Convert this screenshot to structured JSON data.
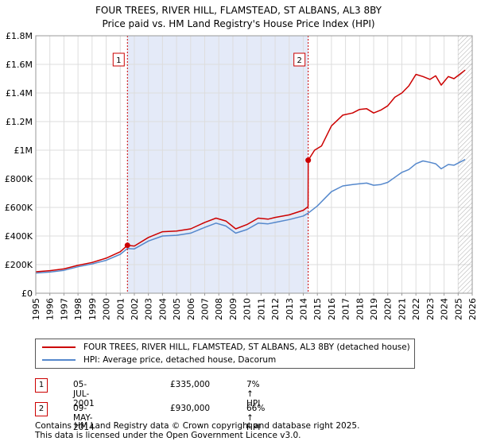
{
  "chart_data": {
    "type": "line",
    "title": "FOUR TREES, RIVER HILL, FLAMSTEAD, ST ALBANS, AL3 8BY",
    "subtitle": "Price paid vs. HM Land Registry's House Price Index (HPI)",
    "xlim": [
      1995,
      2026
    ],
    "ylim": [
      0,
      1800000
    ],
    "x_ticks": [
      1995,
      1996,
      1997,
      1998,
      1999,
      2000,
      2001,
      2002,
      2003,
      2004,
      2005,
      2006,
      2007,
      2008,
      2009,
      2010,
      2011,
      2012,
      2013,
      2014,
      2015,
      2016,
      2017,
      2018,
      2019,
      2020,
      2021,
      2022,
      2023,
      2024,
      2025,
      2026
    ],
    "y_ticks": [
      {
        "value": 0,
        "label": "£0"
      },
      {
        "value": 200000,
        "label": "£200K"
      },
      {
        "value": 400000,
        "label": "£400K"
      },
      {
        "value": 600000,
        "label": "£600K"
      },
      {
        "value": 800000,
        "label": "£800K"
      },
      {
        "value": 1000000,
        "label": "£1M"
      },
      {
        "value": 1200000,
        "label": "£1.2M"
      },
      {
        "value": 1400000,
        "label": "£1.4M"
      },
      {
        "value": 1600000,
        "label": "£1.6M"
      },
      {
        "value": 1800000,
        "label": "£1.8M"
      }
    ],
    "grid": true,
    "shaded_span": [
      2001.5,
      2014.35
    ],
    "forecast_hatch_from": 2025.0,
    "series": [
      {
        "name": "FOUR TREES, RIVER HILL, FLAMSTEAD, ST ALBANS, AL3 8BY (detached house)",
        "color": "#cc0000",
        "x": [
          1995,
          1996,
          1997,
          1998,
          1999,
          2000,
          2001,
          2001.51,
          2002,
          2003,
          2004,
          2005,
          2006,
          2007,
          2007.8,
          2008.5,
          2009.2,
          2010,
          2010.8,
          2011.5,
          2012,
          2013,
          2014,
          2014.34,
          2014.35,
          2014.8,
          2015.3,
          2016,
          2016.8,
          2017.5,
          2018,
          2018.5,
          2019,
          2019.5,
          2020,
          2020.5,
          2021,
          2021.5,
          2022,
          2022.5,
          2023,
          2023.4,
          2023.8,
          2024.3,
          2024.7,
          2025.1,
          2025.5
        ],
        "values": [
          150000,
          158000,
          170000,
          195000,
          215000,
          245000,
          290000,
          335000,
          330000,
          390000,
          430000,
          435000,
          450000,
          495000,
          525000,
          505000,
          450000,
          480000,
          525000,
          518000,
          530000,
          548000,
          580000,
          605000,
          930000,
          1000000,
          1030000,
          1170000,
          1245000,
          1260000,
          1285000,
          1290000,
          1260000,
          1280000,
          1310000,
          1370000,
          1400000,
          1450000,
          1530000,
          1515000,
          1495000,
          1520000,
          1455000,
          1515000,
          1500000,
          1530000,
          1560000
        ]
      },
      {
        "name": "HPI: Average price, detached house, Dacorum",
        "color": "#5588cc",
        "x": [
          1995,
          1996,
          1997,
          1998,
          1999,
          2000,
          2001,
          2001.51,
          2002,
          2003,
          2004,
          2005,
          2006,
          2007,
          2007.8,
          2008.5,
          2009.2,
          2010,
          2010.8,
          2011.5,
          2012,
          2013,
          2014,
          2014.35,
          2015,
          2015.5,
          2016,
          2016.8,
          2017.5,
          2018,
          2018.5,
          2019,
          2019.5,
          2020,
          2020.5,
          2021,
          2021.5,
          2022,
          2022.5,
          2023,
          2023.4,
          2023.8,
          2024.3,
          2024.7,
          2025.1,
          2025.5
        ],
        "values": [
          141000,
          148000,
          160000,
          185000,
          205000,
          230000,
          272000,
          313000,
          310000,
          365000,
          400000,
          405000,
          420000,
          460000,
          490000,
          470000,
          420000,
          445000,
          490000,
          485000,
          495000,
          515000,
          540000,
          560000,
          610000,
          660000,
          710000,
          750000,
          760000,
          765000,
          770000,
          755000,
          760000,
          775000,
          810000,
          845000,
          865000,
          905000,
          925000,
          915000,
          905000,
          870000,
          900000,
          895000,
          915000,
          935000
        ]
      }
    ],
    "transactions": [
      {
        "marker": "1",
        "x": 2001.51,
        "price": 335000,
        "date": "05-JUL-2001",
        "price_label": "£335,000",
        "hpi_label": "7% ↑ HPI"
      },
      {
        "marker": "2",
        "x": 2014.35,
        "price": 930000,
        "date": "09-MAY-2014",
        "price_label": "£930,000",
        "hpi_label": "66% ↑ HPI"
      }
    ],
    "legend_placement": "below"
  },
  "footer": {
    "line1": "Contains HM Land Registry data © Crown copyright and database right 2025.",
    "line2": "This data is licensed under the Open Government Licence v3.0."
  }
}
